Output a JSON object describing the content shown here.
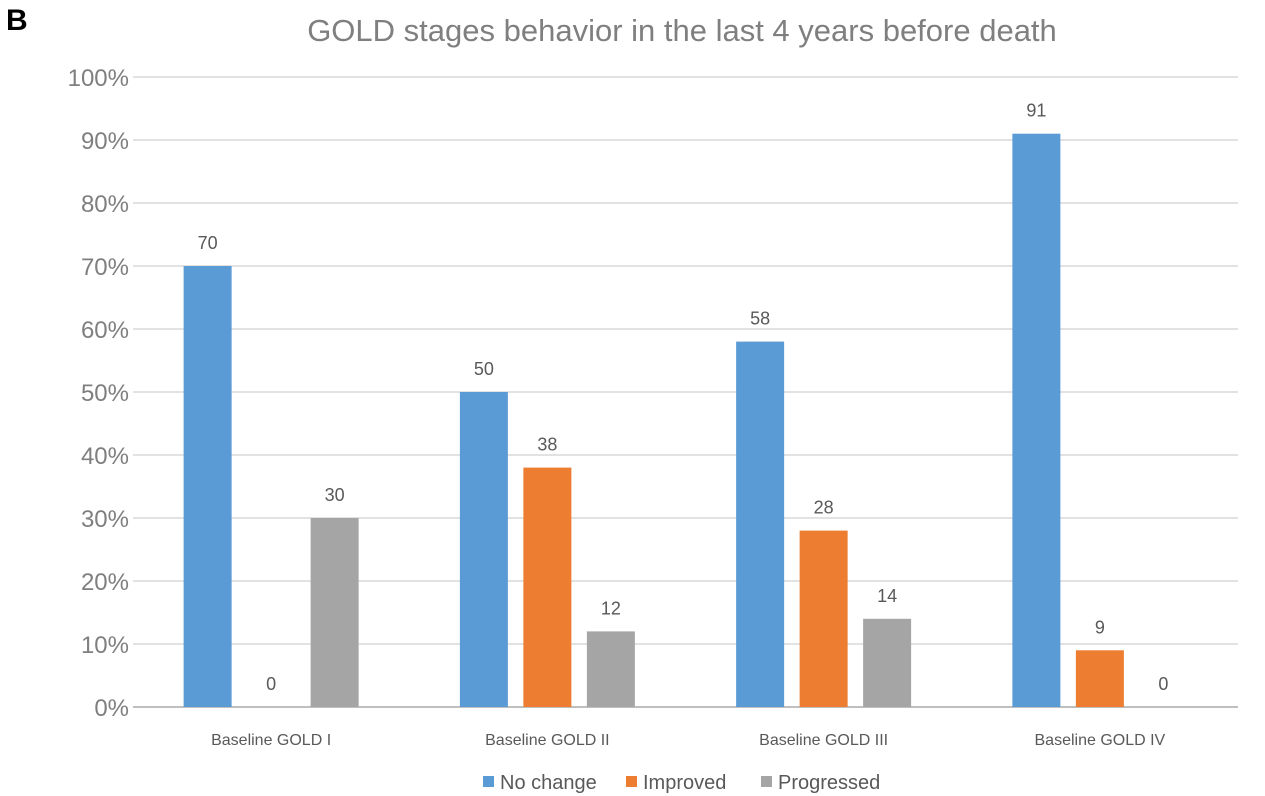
{
  "panel_label": "B",
  "chart_data": {
    "type": "bar",
    "title": "GOLD stages behavior in the last 4 years before death",
    "xlabel": "",
    "ylabel": "",
    "categories": [
      "Baseline GOLD I",
      "Baseline GOLD II",
      "Baseline GOLD III",
      "Baseline GOLD IV"
    ],
    "series": [
      {
        "name": "No change",
        "color": "#5b9bd5",
        "values": [
          70,
          50,
          58,
          91
        ],
        "labels": [
          "70",
          "50",
          "58",
          "91"
        ]
      },
      {
        "name": "Improved",
        "color": "#ed7d31",
        "values": [
          0,
          38,
          28,
          9
        ],
        "labels": [
          "0",
          "38",
          "28",
          "9"
        ]
      },
      {
        "name": "Progressed",
        "color": "#a5a5a5",
        "values": [
          30,
          12,
          14,
          0
        ],
        "labels": [
          "30",
          "12",
          "14",
          "0"
        ]
      }
    ],
    "ylim": [
      0,
      100
    ],
    "yticks": [
      "0%",
      "10%",
      "20%",
      "30%",
      "40%",
      "50%",
      "60%",
      "70%",
      "80%",
      "90%",
      "100%"
    ],
    "grid": true,
    "legend": "bottom"
  }
}
